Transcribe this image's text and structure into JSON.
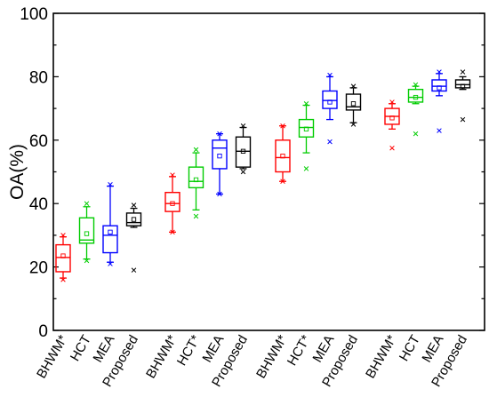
{
  "chart_data": {
    "type": "box",
    "title": "",
    "xlabel": "",
    "ylabel": "OA(%)",
    "ylim": [
      0,
      100
    ],
    "yticks": [
      0,
      20,
      40,
      60,
      80,
      100
    ],
    "grid": false,
    "legend": "none",
    "colors": {
      "BHWM*": "#ff0000",
      "HCT": "#00cc00",
      "HCT*": "#00cc00",
      "MEA": "#0000ff",
      "Proposed": "#000000"
    },
    "groups": [
      {
        "boxes": [
          {
            "label": "BHWM*",
            "min": 16.5,
            "q1": 18.5,
            "median": 23.0,
            "q3": 27.0,
            "max": 29.5,
            "mean": 23.5,
            "outliers_x": [
              30.0,
              16.0
            ]
          },
          {
            "label": "HCT",
            "min": 22.5,
            "q1": 27.5,
            "median": 28.5,
            "q3": 35.5,
            "max": 39.0,
            "mean": 30.5,
            "outliers_x": [
              40.0,
              22.0
            ]
          },
          {
            "label": "MEA",
            "min": 21.5,
            "q1": 24.5,
            "median": 30.0,
            "q3": 33.0,
            "max": 45.5,
            "mean": 31.0,
            "outliers_x": [
              46.0,
              21.0
            ]
          },
          {
            "label": "Proposed",
            "min": 32.5,
            "q1": 33.0,
            "median": 34.0,
            "q3": 37.0,
            "max": 38.5,
            "mean": 35.0,
            "outliers_x": [
              39.5,
              19.0
            ]
          }
        ]
      },
      {
        "boxes": [
          {
            "label": "BHWM*",
            "min": 31.0,
            "q1": 37.5,
            "median": 40.0,
            "q3": 43.5,
            "max": 48.5,
            "mean": 40.0,
            "outliers_x": [
              49.0,
              31.0
            ]
          },
          {
            "label": "HCT*",
            "min": 38.0,
            "q1": 45.0,
            "median": 47.0,
            "q3": 51.5,
            "max": 56.0,
            "mean": 47.5,
            "outliers_x": [
              57.0,
              36.0
            ]
          },
          {
            "label": "MEA",
            "min": 43.0,
            "q1": 51.0,
            "median": 57.5,
            "q3": 60.0,
            "max": 62.0,
            "mean": 55.0,
            "outliers_x": [
              62.0,
              43.0
            ]
          },
          {
            "label": "Proposed",
            "min": 51.0,
            "q1": 51.5,
            "median": 56.5,
            "q3": 61.0,
            "max": 64.0,
            "mean": 56.5,
            "outliers_x": [
              64.5,
              50.0
            ]
          }
        ]
      },
      {
        "boxes": [
          {
            "label": "BHWM*",
            "min": 47.0,
            "q1": 50.0,
            "median": 54.5,
            "q3": 60.0,
            "max": 64.5,
            "mean": 55.0,
            "outliers_x": [
              64.5,
              47.0
            ]
          },
          {
            "label": "HCT*",
            "min": 56.0,
            "q1": 61.0,
            "median": 64.0,
            "q3": 66.5,
            "max": 71.0,
            "mean": 63.5,
            "outliers_x": [
              71.5,
              51.0
            ]
          },
          {
            "label": "MEA",
            "min": 66.5,
            "q1": 70.0,
            "median": 72.5,
            "q3": 75.5,
            "max": 80.0,
            "mean": 72.0,
            "outliers_x": [
              80.5,
              59.5
            ]
          },
          {
            "label": "Proposed",
            "min": 65.5,
            "q1": 69.5,
            "median": 70.5,
            "q3": 74.5,
            "max": 76.5,
            "mean": 71.5,
            "outliers_x": [
              77.0,
              65.0
            ]
          }
        ]
      },
      {
        "boxes": [
          {
            "label": "BHWM*",
            "min": 63.5,
            "q1": 65.0,
            "median": 67.5,
            "q3": 70.0,
            "max": 71.5,
            "mean": 67.0,
            "outliers_x": [
              72.0,
              57.5
            ]
          },
          {
            "label": "HCT",
            "min": 71.5,
            "q1": 72.0,
            "median": 73.5,
            "q3": 76.0,
            "max": 77.0,
            "mean": 73.5,
            "outliers_x": [
              77.5,
              62.0
            ]
          },
          {
            "label": "MEA",
            "min": 74.0,
            "q1": 75.5,
            "median": 77.0,
            "q3": 79.0,
            "max": 81.0,
            "mean": 76.5,
            "outliers_x": [
              81.5,
              63.0
            ]
          },
          {
            "label": "Proposed",
            "min": 76.0,
            "q1": 76.5,
            "median": 77.5,
            "q3": 79.0,
            "max": 80.0,
            "mean": 77.0,
            "outliers_x": [
              81.5,
              66.5
            ]
          }
        ]
      }
    ]
  }
}
